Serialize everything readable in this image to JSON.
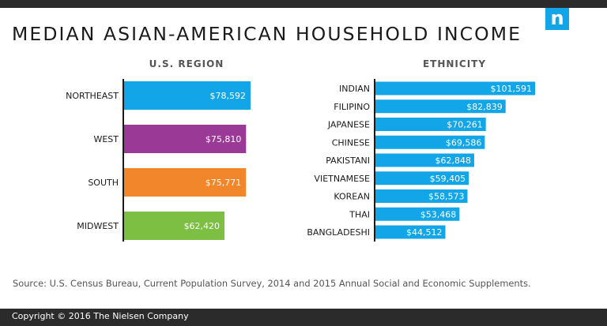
{
  "title": "MEDIAN ASIAN-AMERICAN HOUSEHOLD INCOME",
  "logo": {
    "letter": "n",
    "color": "#12a6e8"
  },
  "source": "Source: U.S. Census Bureau, Current Population Survey, 2014 and 2015 Annual Social and Economic Supplements.",
  "copyright": "Copyright © 2016 The Nielsen Company",
  "chart_data": [
    {
      "type": "bar",
      "orientation": "horizontal",
      "title": "U.S. REGION",
      "categories": [
        "NORTHEAST",
        "WEST",
        "SOUTH",
        "MIDWEST"
      ],
      "values": [
        78592,
        75810,
        75771,
        62420
      ],
      "value_labels": [
        "$78,592",
        "$75,810",
        "$75,771",
        "$62,420"
      ],
      "colors": [
        "#12a6e8",
        "#9b3a96",
        "#f2862a",
        "#7dbf43"
      ],
      "xlim": [
        0,
        78592
      ]
    },
    {
      "type": "bar",
      "orientation": "horizontal",
      "title": "ETHNICITY",
      "categories": [
        "INDIAN",
        "FILIPINO",
        "JAPANESE",
        "CHINESE",
        "PAKISTANI",
        "VIETNAMESE",
        "KOREAN",
        "THAI",
        "BANGLADESHI"
      ],
      "values": [
        101591,
        82839,
        70261,
        69586,
        62848,
        59405,
        58573,
        53468,
        44512
      ],
      "value_labels": [
        "$101,591",
        "$82,839",
        "$70,261",
        "$69,586",
        "$62,848",
        "$59,405",
        "$58,573",
        "$53,468",
        "$44,512"
      ],
      "colors": [
        "#12a6e8"
      ],
      "xlim": [
        0,
        101591
      ]
    }
  ]
}
